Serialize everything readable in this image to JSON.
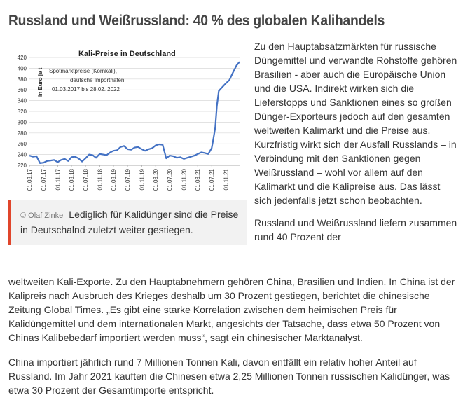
{
  "article": {
    "headline": "Russland und Weißrussland: 40 % des globalen Kalihandels",
    "right_para1": "Zu den Hauptabsatzmärkten für russische Düngemittel und verwandte Rohstoffe gehören Brasilien - aber auch die Europäische Union und die USA. Indirekt wirken sich die Lieferstopps und Sanktionen eines so großen Dünger-Exporteurs jedoch auf den gesamten weltweiten Kalimarkt und die Preise aus. Kurzfristig wirkt sich der Ausfall Russlands – in Verbindung mit den Sanktionen gegen Weißrussland – wohl vor allem auf den Kalimarkt und die Kalipreise aus. Das lässt sich jedenfalls jetzt schon beobachten.",
    "right_para2_start": "Russland und Weißrussland liefern zusammen rund 40 Prozent der",
    "para2_cont": "weltweiten Kali-Exporte. Zu den Hauptabnehmern gehören China, Brasilien und Indien. In China ist der Kalipreis nach Ausbruch des Krieges deshalb um 30 Prozent gestiegen, berichtet die chinesische Zeitung Global Times. „Es gibt eine starke Korrelation zwischen dem heimischen Preis für Kalidüngemittel und dem internationalen Markt, angesichts der Tatsache, dass etwa 50 Prozent von Chinas Kalibebedarf importiert werden muss“, sagt ein chinesischer Marktanalyst.",
    "para3": "China importiert jährlich rund 7 Millionen Tonnen Kali, davon entfällt ein relativ hoher Anteil auf Russland. Im Jahr 2021 kauften die Chinesen etwa 2,25 Millionen Tonnen russischen Kalidünger, was etwa 30 Prozent der Gesamtimporte entspricht."
  },
  "figure": {
    "credit": "© Olaf Zinke",
    "caption": "Lediglich für Kalidünger sind die Preise in Deutschalnd zuletzt weiter gestiegen."
  },
  "chart_data": {
    "type": "line",
    "title": "Kali-Preise in Deutschland",
    "note_lines": [
      "Spotmarktpreise (Kornkali),",
      "deutsche Importhäfen",
      "01.03.2017 bis 28.02. 2022"
    ],
    "ylabel": "in Euro je t",
    "ylim": [
      220,
      420
    ],
    "yticks": [
      220,
      240,
      260,
      280,
      300,
      320,
      340,
      360,
      380,
      400,
      420
    ],
    "xticks": [
      "01.03.17",
      "01.07.17",
      "01.11.17",
      "01.03.18",
      "01.07.18",
      "01.11.18",
      "01.03.19",
      "01.07.19",
      "01.11.19",
      "01.03.20",
      "01.07.20",
      "01.11.20",
      "01.03.21",
      "01.07.21",
      "01.11.21"
    ],
    "series": [
      {
        "color": "#4472c4",
        "x": [
          "2017-03-01",
          "2017-04-01",
          "2017-05-01",
          "2017-06-01",
          "2017-07-01",
          "2017-08-01",
          "2017-09-01",
          "2017-10-01",
          "2017-11-01",
          "2017-12-01",
          "2018-01-01",
          "2018-02-01",
          "2018-03-01",
          "2018-04-01",
          "2018-05-01",
          "2018-06-01",
          "2018-07-01",
          "2018-08-01",
          "2018-09-01",
          "2018-10-01",
          "2018-11-01",
          "2018-12-01",
          "2019-01-01",
          "2019-02-01",
          "2019-03-01",
          "2019-04-01",
          "2019-05-01",
          "2019-06-01",
          "2019-07-01",
          "2019-08-01",
          "2019-09-01",
          "2019-10-01",
          "2019-11-01",
          "2019-12-01",
          "2020-01-01",
          "2020-02-01",
          "2020-03-01",
          "2020-04-01",
          "2020-05-01",
          "2020-06-01",
          "2020-07-01",
          "2020-08-01",
          "2020-09-01",
          "2020-10-01",
          "2020-11-01",
          "2020-12-01",
          "2021-01-01",
          "2021-02-01",
          "2021-03-01",
          "2021-04-01",
          "2021-05-01",
          "2021-06-01",
          "2021-07-01",
          "2021-07-15",
          "2021-08-01",
          "2021-08-15",
          "2021-09-01",
          "2021-10-01",
          "2021-11-01",
          "2021-12-01",
          "2022-01-01",
          "2022-02-01",
          "2022-02-28"
        ],
        "values": [
          238,
          236,
          237,
          224,
          225,
          228,
          229,
          230,
          226,
          230,
          232,
          228,
          235,
          236,
          233,
          227,
          233,
          240,
          239,
          234,
          241,
          240,
          239,
          244,
          247,
          248,
          254,
          256,
          250,
          249,
          253,
          254,
          250,
          247,
          250,
          252,
          257,
          259,
          258,
          233,
          238,
          237,
          234,
          235,
          232,
          234,
          236,
          238,
          241,
          244,
          243,
          241,
          252,
          268,
          290,
          330,
          358,
          365,
          372,
          378,
          392,
          405,
          412
        ]
      }
    ]
  }
}
